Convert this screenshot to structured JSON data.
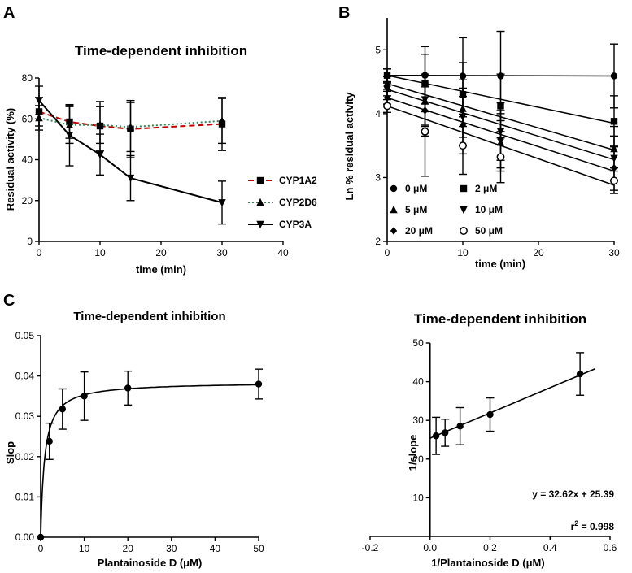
{
  "panels": {
    "a": "A",
    "b": "B",
    "c": "C"
  },
  "chart_data": [
    {
      "id": "A",
      "type": "line",
      "title": "Time-dependent inhibition",
      "xlabel": "time (min)",
      "ylabel": "Residual activity (%)",
      "xlim": [
        0,
        40
      ],
      "ylim": [
        0,
        80
      ],
      "xticks": [
        "0",
        "10",
        "20",
        "30",
        "40"
      ],
      "yticks": [
        "0",
        "20",
        "40",
        "60",
        "80"
      ],
      "legend_position": "right",
      "series": [
        {
          "name": "CYP1A2",
          "marker": "square",
          "style": "dashed",
          "color": "#c00000",
          "x": [
            0,
            5,
            10,
            15,
            30
          ],
          "y": [
            63.5,
            58.5,
            56.5,
            55,
            57.5
          ],
          "err": [
            7,
            8,
            12,
            14,
            13
          ]
        },
        {
          "name": "CYP2D6",
          "marker": "triangle-up",
          "style": "dotted",
          "color": "#2e8b57",
          "x": [
            0,
            5,
            10,
            15,
            30
          ],
          "y": [
            60.5,
            57,
            57,
            56,
            59
          ],
          "err": [
            6,
            9,
            9,
            12,
            11
          ]
        },
        {
          "name": "CYP3A",
          "marker": "triangle-down",
          "style": "solid",
          "color": "#000000",
          "x": [
            0,
            5,
            10,
            15,
            30
          ],
          "y": [
            69,
            52,
            42.5,
            31,
            19
          ],
          "err": [
            7,
            15,
            10,
            11,
            10.5
          ]
        }
      ]
    },
    {
      "id": "B",
      "type": "scatter",
      "title": "",
      "xlabel": "time (min)",
      "ylabel": "Ln % residual activity",
      "xlim": [
        0,
        30
      ],
      "ylim": [
        2,
        5.5
      ],
      "xticks": [
        "0",
        "10",
        "20",
        "30"
      ],
      "yticks": [
        "2",
        "3",
        "4",
        "5"
      ],
      "legend_position": "bottom-left",
      "series": [
        {
          "name": "0 μM",
          "marker": "circle",
          "x": [
            0,
            5,
            10,
            15,
            30
          ],
          "y": [
            4.6,
            4.6,
            4.59,
            4.59,
            4.59
          ],
          "err": [
            0.1,
            0.45,
            0.6,
            0.7,
            0.5
          ],
          "fit": [
            4.6,
            4.59
          ]
        },
        {
          "name": "2 μM",
          "marker": "square",
          "x": [
            0,
            5,
            10,
            15,
            30
          ],
          "y": [
            4.6,
            4.48,
            4.3,
            4.12,
            3.88
          ],
          "err": [
            0.1,
            0.45,
            0.5,
            0.5,
            0.4
          ],
          "fit": [
            4.6,
            3.85
          ]
        },
        {
          "name": "5 μM",
          "marker": "triangle-up",
          "x": [
            0,
            5,
            10,
            15,
            30
          ],
          "y": [
            4.48,
            4.2,
            4.08,
            3.55,
            3.45
          ],
          "err": [
            0.1,
            0.4,
            0.45,
            0.45,
            0.35
          ],
          "fit": [
            4.47,
            3.43
          ]
        },
        {
          "name": "10 μM",
          "marker": "triangle-down",
          "x": [
            0,
            5,
            10,
            15,
            30
          ],
          "y": [
            4.38,
            4.22,
            3.95,
            3.72,
            3.3
          ],
          "err": [
            0.1,
            0.4,
            0.45,
            0.45,
            0.35
          ],
          "fit": [
            4.38,
            3.28
          ]
        },
        {
          "name": "20 μM",
          "marker": "diamond",
          "x": [
            0,
            5,
            10,
            15,
            30
          ],
          "y": [
            4.25,
            4.05,
            3.82,
            3.6,
            3.15
          ],
          "err": [
            0.1,
            0.4,
            0.45,
            0.45,
            0.35
          ],
          "fit": [
            4.25,
            3.1
          ]
        },
        {
          "name": "50 μM",
          "marker": "open-circle",
          "x": [
            0,
            5,
            10,
            15,
            30
          ],
          "y": [
            4.12,
            3.72,
            3.5,
            3.32,
            2.95
          ],
          "err": [
            0.1,
            0.7,
            0.45,
            0.4,
            0.2
          ],
          "fit": [
            4.12,
            2.88
          ]
        }
      ]
    },
    {
      "id": "C1",
      "type": "line",
      "title": "Time-dependent inhibition",
      "xlabel": "Plantainoside D (μM)",
      "ylabel": "Slop",
      "xlim": [
        0,
        50
      ],
      "ylim": [
        0,
        0.05
      ],
      "xticks": [
        "0",
        "10",
        "20",
        "30",
        "40",
        "50"
      ],
      "yticks": [
        "0.00",
        "0.01",
        "0.02",
        "0.03",
        "0.04",
        "0.05"
      ],
      "series": [
        {
          "name": "slope",
          "marker": "circle",
          "x": [
            0,
            2,
            5,
            10,
            20,
            50
          ],
          "y": [
            0,
            0.0238,
            0.0318,
            0.035,
            0.037,
            0.038
          ],
          "err": [
            0,
            0.0045,
            0.005,
            0.006,
            0.0042,
            0.0037
          ]
        }
      ]
    },
    {
      "id": "C2",
      "type": "scatter",
      "title": "Time-dependent inhibition",
      "xlabel": "1/Plantainoside D (μM)",
      "ylabel": "1/slope",
      "xlim": [
        -0.2,
        0.6
      ],
      "ylim": [
        0,
        50
      ],
      "xticks": [
        "-0.2",
        "0.0",
        "0.2",
        "0.4",
        "0.6"
      ],
      "yticks": [
        "10",
        "20",
        "30",
        "40",
        "50"
      ],
      "series": [
        {
          "name": "1/slope",
          "marker": "circle",
          "x": [
            0.02,
            0.05,
            0.1,
            0.2,
            0.5
          ],
          "y": [
            26,
            26.8,
            28.5,
            31.5,
            42
          ],
          "err": [
            4.8,
            3.5,
            4.8,
            4.3,
            5.5
          ]
        }
      ],
      "fit": {
        "slope": 32.62,
        "intercept": 25.39,
        "x_range": [
          0,
          0.55
        ]
      },
      "equation": "y = 32.62x + 25.39",
      "r2_label": "r",
      "r2_sup": "2",
      "r2_value": " = 0.998"
    }
  ]
}
